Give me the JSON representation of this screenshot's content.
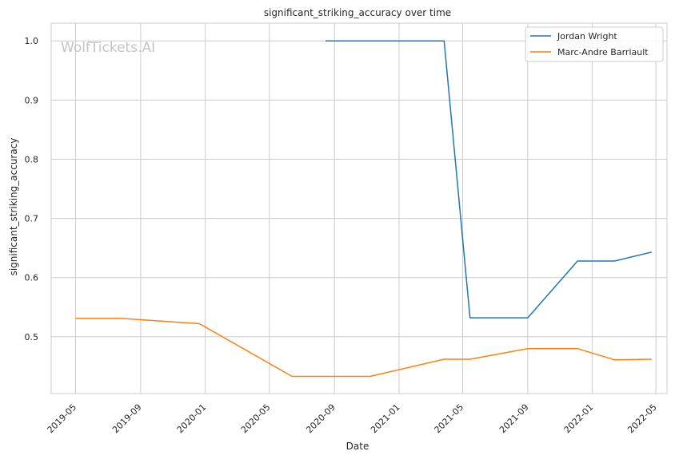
{
  "chart_data": {
    "type": "line",
    "title": "significant_striking_accuracy over time",
    "xlabel": "Date",
    "ylabel": "significant_striking_accuracy",
    "watermark": "WolfTickets.AI",
    "grid": true,
    "legend_position": "top-right",
    "xlim": [
      "2019-03-16",
      "2022-05-22"
    ],
    "ylim": [
      0.404,
      1.03
    ],
    "x_ticks": [
      "2019-05-01",
      "2019-09-01",
      "2020-01-01",
      "2020-05-01",
      "2020-09-01",
      "2021-01-01",
      "2021-05-01",
      "2021-09-01",
      "2022-01-01",
      "2022-05-01"
    ],
    "x_tick_labels": [
      "2019-05",
      "2019-09",
      "2020-01",
      "2020-05",
      "2020-09",
      "2021-01",
      "2021-05",
      "2021-09",
      "2022-01",
      "2022-05"
    ],
    "y_ticks": [
      0.5,
      0.6,
      0.7,
      0.8,
      0.9,
      1.0
    ],
    "y_tick_labels": [
      "0.5",
      "0.6",
      "0.7",
      "0.8",
      "0.9",
      "1.0"
    ],
    "series": [
      {
        "name": "Jordan Wright",
        "color": "#1f77b4",
        "x": [
          "2020-08-15",
          "2021-03-27",
          "2021-05-15",
          "2021-09-01",
          "2021-12-04",
          "2022-02-12",
          "2022-04-23"
        ],
        "y": [
          1.0,
          1.0,
          0.532,
          0.532,
          0.628,
          0.628,
          0.643
        ]
      },
      {
        "name": "Marc-Andre Barriault",
        "color": "#ff7f0e",
        "x": [
          "2019-05-01",
          "2019-07-27",
          "2019-12-21",
          "2020-06-13",
          "2020-11-07",
          "2021-03-27",
          "2021-05-15",
          "2021-09-01",
          "2021-12-04",
          "2022-02-12",
          "2022-04-23"
        ],
        "y": [
          0.531,
          0.531,
          0.522,
          0.433,
          0.433,
          0.462,
          0.462,
          0.48,
          0.48,
          0.461,
          0.462
        ]
      }
    ]
  }
}
